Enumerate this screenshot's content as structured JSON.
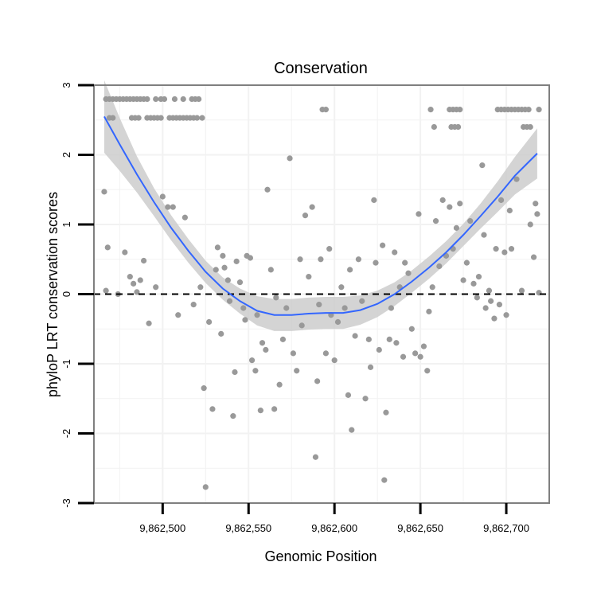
{
  "chart_data": {
    "type": "scatter",
    "title": "Conservation",
    "xlabel": "Genomic Position",
    "ylabel": "phyloP LRT conservation scores",
    "xlim": [
      9862460,
      9862725
    ],
    "ylim": [
      -3.0,
      3.0
    ],
    "x_ticks": [
      9862500,
      9862550,
      9862600,
      9862650,
      9862700
    ],
    "x_tick_labels": [
      "9,862,500",
      "9,862,550",
      "9,862,600",
      "9,862,650",
      "9,862,700"
    ],
    "y_ticks": [
      -3,
      -2,
      -1,
      0,
      1,
      2,
      3
    ],
    "y_tick_labels": [
      "-3",
      "-2",
      "-1",
      "0",
      "1",
      "2",
      "3"
    ],
    "reference_line": {
      "y": 0,
      "style": "dashed"
    },
    "grid": true,
    "colors": {
      "points": "#999999",
      "smooth": "#3366ff",
      "band": "#cccccc",
      "frame": "#7f7f7f",
      "grid": "#f2f2f2"
    },
    "points": [
      [
        9862467,
        2.8
      ],
      [
        9862469,
        2.8
      ],
      [
        9862471,
        2.8
      ],
      [
        9862473,
        2.8
      ],
      [
        9862475,
        2.8
      ],
      [
        9862477,
        2.8
      ],
      [
        9862479,
        2.8
      ],
      [
        9862481,
        2.8
      ],
      [
        9862483,
        2.8
      ],
      [
        9862485,
        2.8
      ],
      [
        9862487,
        2.8
      ],
      [
        9862489,
        2.8
      ],
      [
        9862491,
        2.8
      ],
      [
        9862496,
        2.8
      ],
      [
        9862499,
        2.8
      ],
      [
        9862501,
        2.8
      ],
      [
        9862507,
        2.8
      ],
      [
        9862512,
        2.8
      ],
      [
        9862517,
        2.8
      ],
      [
        9862519,
        2.8
      ],
      [
        9862521,
        2.8
      ],
      [
        9862469,
        2.53
      ],
      [
        9862471,
        2.53
      ],
      [
        9862482,
        2.53
      ],
      [
        9862484,
        2.53
      ],
      [
        9862486,
        2.53
      ],
      [
        9862491,
        2.53
      ],
      [
        9862493,
        2.53
      ],
      [
        9862495,
        2.53
      ],
      [
        9862497,
        2.53
      ],
      [
        9862499,
        2.53
      ],
      [
        9862504,
        2.53
      ],
      [
        9862506,
        2.53
      ],
      [
        9862508,
        2.53
      ],
      [
        9862510,
        2.53
      ],
      [
        9862512,
        2.53
      ],
      [
        9862514,
        2.53
      ],
      [
        9862516,
        2.53
      ],
      [
        9862518,
        2.53
      ],
      [
        9862520,
        2.53
      ],
      [
        9862523,
        2.53
      ],
      [
        9862593,
        2.65
      ],
      [
        9862595,
        2.65
      ],
      [
        9862656,
        2.65
      ],
      [
        9862667,
        2.65
      ],
      [
        9862669,
        2.65
      ],
      [
        9862671,
        2.65
      ],
      [
        9862673,
        2.65
      ],
      [
        9862695,
        2.65
      ],
      [
        9862697,
        2.65
      ],
      [
        9862699,
        2.65
      ],
      [
        9862701,
        2.65
      ],
      [
        9862703,
        2.65
      ],
      [
        9862705,
        2.65
      ],
      [
        9862707,
        2.65
      ],
      [
        9862709,
        2.65
      ],
      [
        9862711,
        2.65
      ],
      [
        9862713,
        2.65
      ],
      [
        9862719,
        2.65
      ],
      [
        9862658,
        2.4
      ],
      [
        9862668,
        2.4
      ],
      [
        9862670,
        2.4
      ],
      [
        9862672,
        2.4
      ],
      [
        9862710,
        2.4
      ],
      [
        9862712,
        2.4
      ],
      [
        9862714,
        2.4
      ],
      [
        9862466,
        1.47
      ],
      [
        9862468,
        0.67
      ],
      [
        9862467,
        0.05
      ],
      [
        9862474,
        0.0
      ],
      [
        9862478,
        0.6
      ],
      [
        9862481,
        0.25
      ],
      [
        9862483,
        0.15
      ],
      [
        9862485,
        0.03
      ],
      [
        9862487,
        0.2
      ],
      [
        9862489,
        0.48
      ],
      [
        9862492,
        -0.42
      ],
      [
        9862496,
        0.1
      ],
      [
        9862500,
        1.4
      ],
      [
        9862503,
        1.25
      ],
      [
        9862506,
        1.25
      ],
      [
        9862509,
        -0.3
      ],
      [
        9862513,
        1.1
      ],
      [
        9862518,
        -0.15
      ],
      [
        9862522,
        0.1
      ],
      [
        9862524,
        -1.35
      ],
      [
        9862525,
        -2.77
      ],
      [
        9862527,
        -0.4
      ],
      [
        9862529,
        -1.65
      ],
      [
        9862531,
        0.35
      ],
      [
        9862532,
        0.67
      ],
      [
        9862534,
        -0.57
      ],
      [
        9862535,
        0.55
      ],
      [
        9862536,
        0.38
      ],
      [
        9862538,
        0.2
      ],
      [
        9862539,
        -0.1
      ],
      [
        9862541,
        -1.75
      ],
      [
        9862542,
        -1.12
      ],
      [
        9862543,
        0.47
      ],
      [
        9862545,
        0.17
      ],
      [
        9862547,
        -0.2
      ],
      [
        9862548,
        -0.37
      ],
      [
        9862549,
        0.55
      ],
      [
        9862551,
        0.52
      ],
      [
        9862552,
        -0.95
      ],
      [
        9862554,
        -1.1
      ],
      [
        9862555,
        -0.3
      ],
      [
        9862557,
        -1.67
      ],
      [
        9862558,
        -0.7
      ],
      [
        9862560,
        -0.8
      ],
      [
        9862561,
        1.5
      ],
      [
        9862563,
        0.35
      ],
      [
        9862565,
        -1.65
      ],
      [
        9862566,
        -0.05
      ],
      [
        9862568,
        -1.3
      ],
      [
        9862570,
        -0.65
      ],
      [
        9862572,
        -0.2
      ],
      [
        9862574,
        1.95
      ],
      [
        9862576,
        -0.85
      ],
      [
        9862578,
        -1.1
      ],
      [
        9862580,
        0.5
      ],
      [
        9862581,
        -0.45
      ],
      [
        9862583,
        1.13
      ],
      [
        9862585,
        0.25
      ],
      [
        9862587,
        1.25
      ],
      [
        9862589,
        -2.34
      ],
      [
        9862590,
        -1.25
      ],
      [
        9862591,
        -0.15
      ],
      [
        9862592,
        0.5
      ],
      [
        9862595,
        -0.85
      ],
      [
        9862597,
        0.65
      ],
      [
        9862598,
        -0.3
      ],
      [
        9862600,
        -0.95
      ],
      [
        9862602,
        -0.4
      ],
      [
        9862604,
        0.1
      ],
      [
        9862606,
        -0.2
      ],
      [
        9862608,
        -1.45
      ],
      [
        9862609,
        0.35
      ],
      [
        9862610,
        -1.95
      ],
      [
        9862612,
        -0.6
      ],
      [
        9862614,
        0.5
      ],
      [
        9862616,
        -0.1
      ],
      [
        9862618,
        -1.5
      ],
      [
        9862620,
        -0.65
      ],
      [
        9862621,
        -1.05
      ],
      [
        9862623,
        1.35
      ],
      [
        9862624,
        0.45
      ],
      [
        9862626,
        -0.8
      ],
      [
        9862628,
        0.7
      ],
      [
        9862629,
        -2.67
      ],
      [
        9862630,
        -1.7
      ],
      [
        9862632,
        -0.65
      ],
      [
        9862633,
        -0.2
      ],
      [
        9862635,
        0.6
      ],
      [
        9862636,
        -0.7
      ],
      [
        9862638,
        0.1
      ],
      [
        9862640,
        -0.9
      ],
      [
        9862641,
        0.45
      ],
      [
        9862643,
        0.3
      ],
      [
        9862645,
        -0.5
      ],
      [
        9862647,
        -0.85
      ],
      [
        9862649,
        1.15
      ],
      [
        9862650,
        -0.9
      ],
      [
        9862652,
        -0.75
      ],
      [
        9862654,
        -1.1
      ],
      [
        9862655,
        -0.25
      ],
      [
        9862657,
        0.1
      ],
      [
        9862659,
        1.05
      ],
      [
        9862661,
        0.4
      ],
      [
        9862663,
        1.35
      ],
      [
        9862665,
        0.55
      ],
      [
        9862667,
        1.25
      ],
      [
        9862669,
        0.65
      ],
      [
        9862671,
        0.95
      ],
      [
        9862673,
        1.3
      ],
      [
        9862675,
        0.2
      ],
      [
        9862677,
        0.45
      ],
      [
        9862679,
        1.05
      ],
      [
        9862681,
        0.15
      ],
      [
        9862683,
        -0.05
      ],
      [
        9862684,
        0.25
      ],
      [
        9862686,
        1.85
      ],
      [
        9862687,
        0.85
      ],
      [
        9862688,
        -0.2
      ],
      [
        9862690,
        0.05
      ],
      [
        9862691,
        -0.1
      ],
      [
        9862693,
        -0.35
      ],
      [
        9862694,
        0.65
      ],
      [
        9862696,
        -0.15
      ],
      [
        9862697,
        1.35
      ],
      [
        9862699,
        0.6
      ],
      [
        9862700,
        -0.3
      ],
      [
        9862702,
        1.2
      ],
      [
        9862703,
        0.65
      ],
      [
        9862706,
        1.65
      ],
      [
        9862709,
        0.05
      ],
      [
        9862714,
        1.0
      ],
      [
        9862716,
        0.53
      ],
      [
        9862717,
        1.3
      ],
      [
        9862718,
        1.15
      ],
      [
        9862719,
        0.02
      ]
    ],
    "smooth_curve": [
      [
        9862466,
        2.55
      ],
      [
        9862475,
        2.15
      ],
      [
        9862485,
        1.72
      ],
      [
        9862495,
        1.32
      ],
      [
        9862505,
        0.95
      ],
      [
        9862515,
        0.62
      ],
      [
        9862525,
        0.32
      ],
      [
        9862535,
        0.08
      ],
      [
        9862545,
        -0.1
      ],
      [
        9862555,
        -0.24
      ],
      [
        9862565,
        -0.3
      ],
      [
        9862575,
        -0.3
      ],
      [
        9862585,
        -0.28
      ],
      [
        9862595,
        -0.27
      ],
      [
        9862605,
        -0.27
      ],
      [
        9862615,
        -0.23
      ],
      [
        9862625,
        -0.14
      ],
      [
        9862635,
        0.0
      ],
      [
        9862645,
        0.18
      ],
      [
        9862655,
        0.38
      ],
      [
        9862665,
        0.6
      ],
      [
        9862675,
        0.85
      ],
      [
        9862685,
        1.12
      ],
      [
        9862695,
        1.4
      ],
      [
        9862705,
        1.7
      ],
      [
        9862718,
        2.02
      ]
    ],
    "smooth_band_halfwidth": [
      [
        9862466,
        0.52
      ],
      [
        9862475,
        0.38
      ],
      [
        9862485,
        0.26
      ],
      [
        9862495,
        0.2
      ],
      [
        9862505,
        0.18
      ],
      [
        9862515,
        0.17
      ],
      [
        9862525,
        0.16
      ],
      [
        9862535,
        0.16
      ],
      [
        9862545,
        0.18
      ],
      [
        9862555,
        0.21
      ],
      [
        9862565,
        0.23
      ],
      [
        9862575,
        0.23
      ],
      [
        9862585,
        0.23
      ],
      [
        9862595,
        0.23
      ],
      [
        9862605,
        0.23
      ],
      [
        9862615,
        0.21
      ],
      [
        9862625,
        0.19
      ],
      [
        9862635,
        0.17
      ],
      [
        9862645,
        0.16
      ],
      [
        9862655,
        0.16
      ],
      [
        9862665,
        0.16
      ],
      [
        9862675,
        0.16
      ],
      [
        9862685,
        0.18
      ],
      [
        9862695,
        0.22
      ],
      [
        9862705,
        0.27
      ],
      [
        9862718,
        0.36
      ]
    ]
  }
}
